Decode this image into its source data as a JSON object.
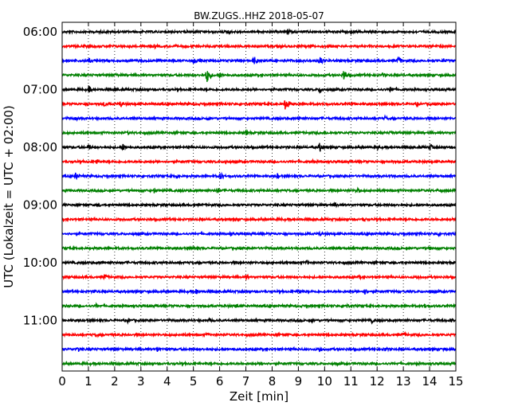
{
  "chart_data": {
    "type": "line",
    "title": "BW.ZUGS..HHZ 2018-05-07",
    "xlabel": "Zeit  [min]",
    "ylabel": "UTC (Lokalzeit = UTC + 02:00)",
    "xlim": [
      0,
      15
    ],
    "x_ticks": [
      "0",
      "1",
      "2",
      "3",
      "4",
      "5",
      "6",
      "7",
      "8",
      "9",
      "10",
      "11",
      "12",
      "13",
      "14",
      "15"
    ],
    "y_tick_labels": [
      "06:00",
      "07:00",
      "08:00",
      "09:00",
      "10:00",
      "11:00"
    ],
    "grid": "vertical dotted",
    "trace_colors": [
      "#000000",
      "#ff0000",
      "#0000ff",
      "#008000"
    ],
    "traces": [
      {
        "start": "06:00",
        "color": "#000000",
        "events": [
          [
            6.3,
            0.35
          ],
          [
            8.6,
            0.45
          ],
          [
            11.0,
            0.25
          ]
        ]
      },
      {
        "start": "06:15",
        "color": "#ff0000",
        "events": [
          [
            0.8,
            0.2
          ],
          [
            3.5,
            0.25
          ],
          [
            9.5,
            0.2
          ]
        ]
      },
      {
        "start": "06:30",
        "color": "#0000ff",
        "events": [
          [
            1.0,
            0.35
          ],
          [
            5.0,
            0.45
          ],
          [
            7.3,
            0.55
          ],
          [
            9.8,
            0.6
          ],
          [
            12.8,
            0.55
          ],
          [
            14.5,
            0.35
          ]
        ]
      },
      {
        "start": "06:45",
        "color": "#008000",
        "events": [
          [
            2.0,
            0.3
          ],
          [
            5.5,
            1.0
          ],
          [
            6.0,
            0.35
          ],
          [
            10.7,
            0.8
          ],
          [
            12.2,
            0.3
          ]
        ]
      },
      {
        "start": "07:00",
        "color": "#000000",
        "events": [
          [
            1.0,
            0.45
          ],
          [
            2.0,
            0.35
          ],
          [
            9.8,
            0.5
          ],
          [
            12.5,
            0.45
          ]
        ]
      },
      {
        "start": "07:15",
        "color": "#ff0000",
        "events": [
          [
            1.6,
            0.4
          ],
          [
            2.2,
            0.45
          ],
          [
            8.5,
            0.85
          ],
          [
            13.5,
            0.3
          ]
        ]
      },
      {
        "start": "07:30",
        "color": "#0000ff",
        "events": [
          [
            0.5,
            0.25
          ],
          [
            5.5,
            0.3
          ],
          [
            9.0,
            0.3
          ],
          [
            12.3,
            0.3
          ]
        ]
      },
      {
        "start": "07:45",
        "color": "#008000",
        "events": [
          [
            2.5,
            0.25
          ],
          [
            7.0,
            0.35
          ],
          [
            10.0,
            0.3
          ],
          [
            12.5,
            0.3
          ]
        ]
      },
      {
        "start": "08:00",
        "color": "#000000",
        "events": [
          [
            1.0,
            0.4
          ],
          [
            2.3,
            0.45
          ],
          [
            9.8,
            0.65
          ],
          [
            12.0,
            0.35
          ],
          [
            14.0,
            0.4
          ]
        ]
      },
      {
        "start": "08:15",
        "color": "#ff0000",
        "events": [
          [
            1.3,
            0.4
          ],
          [
            6.2,
            0.35
          ],
          [
            9.5,
            0.3
          ],
          [
            12.5,
            0.25
          ]
        ]
      },
      {
        "start": "08:30",
        "color": "#0000ff",
        "events": [
          [
            0.5,
            0.45
          ],
          [
            4.3,
            0.4
          ],
          [
            6.0,
            0.5
          ],
          [
            8.2,
            0.35
          ],
          [
            12.5,
            0.3
          ]
        ]
      },
      {
        "start": "08:45",
        "color": "#008000",
        "events": [
          [
            3.5,
            0.35
          ],
          [
            5.9,
            0.4
          ],
          [
            11.2,
            0.45
          ],
          [
            14.3,
            0.2
          ]
        ]
      },
      {
        "start": "09:00",
        "color": "#000000",
        "events": [
          [
            1.4,
            0.25
          ],
          [
            5.0,
            0.2
          ],
          [
            10.4,
            0.35
          ]
        ]
      },
      {
        "start": "09:15",
        "color": "#ff0000",
        "events": [
          [
            2.5,
            0.2
          ],
          [
            6.6,
            0.25
          ],
          [
            11.5,
            0.25
          ]
        ]
      },
      {
        "start": "09:30",
        "color": "#0000ff",
        "events": [
          [
            6.4,
            0.35
          ],
          [
            9.8,
            0.3
          ],
          [
            14.3,
            0.3
          ]
        ]
      },
      {
        "start": "09:45",
        "color": "#008000",
        "events": [
          [
            5.0,
            0.3
          ],
          [
            10.5,
            0.25
          ],
          [
            14.0,
            0.25
          ]
        ]
      },
      {
        "start": "10:00",
        "color": "#000000",
        "events": [
          [
            1.5,
            0.25
          ],
          [
            9.3,
            0.3
          ]
        ]
      },
      {
        "start": "10:15",
        "color": "#ff0000",
        "events": [
          [
            1.6,
            0.45
          ],
          [
            7.0,
            0.35
          ],
          [
            11.3,
            0.3
          ],
          [
            13.5,
            0.3
          ]
        ]
      },
      {
        "start": "10:30",
        "color": "#0000ff",
        "events": [
          [
            1.2,
            0.3
          ],
          [
            5.1,
            0.45
          ],
          [
            9.0,
            0.35
          ],
          [
            11.5,
            0.45
          ],
          [
            14.0,
            0.3
          ]
        ]
      },
      {
        "start": "10:45",
        "color": "#008000",
        "events": [
          [
            1.3,
            0.3
          ],
          [
            6.6,
            0.35
          ],
          [
            10.8,
            0.35
          ],
          [
            13.8,
            0.3
          ]
        ]
      },
      {
        "start": "11:00",
        "color": "#000000",
        "events": [
          [
            2.5,
            0.35
          ],
          [
            5.6,
            0.3
          ],
          [
            9.5,
            0.3
          ],
          [
            11.8,
            0.35
          ],
          [
            14.8,
            0.3
          ]
        ]
      },
      {
        "start": "11:15",
        "color": "#ff0000",
        "events": [
          [
            1.3,
            0.3
          ],
          [
            5.5,
            0.3
          ],
          [
            8.5,
            0.3
          ],
          [
            13.0,
            0.3
          ]
        ]
      },
      {
        "start": "11:30",
        "color": "#0000ff",
        "events": [
          [
            0.6,
            0.45
          ],
          [
            3.6,
            0.4
          ],
          [
            6.5,
            0.3
          ],
          [
            9.8,
            0.4
          ],
          [
            12.3,
            0.3
          ],
          [
            14.5,
            0.35
          ]
        ]
      },
      {
        "start": "11:45",
        "color": "#008000",
        "events": [
          [
            2.0,
            0.25
          ],
          [
            7.6,
            0.3
          ],
          [
            10.5,
            0.25
          ],
          [
            13.5,
            0.2
          ]
        ]
      }
    ]
  }
}
